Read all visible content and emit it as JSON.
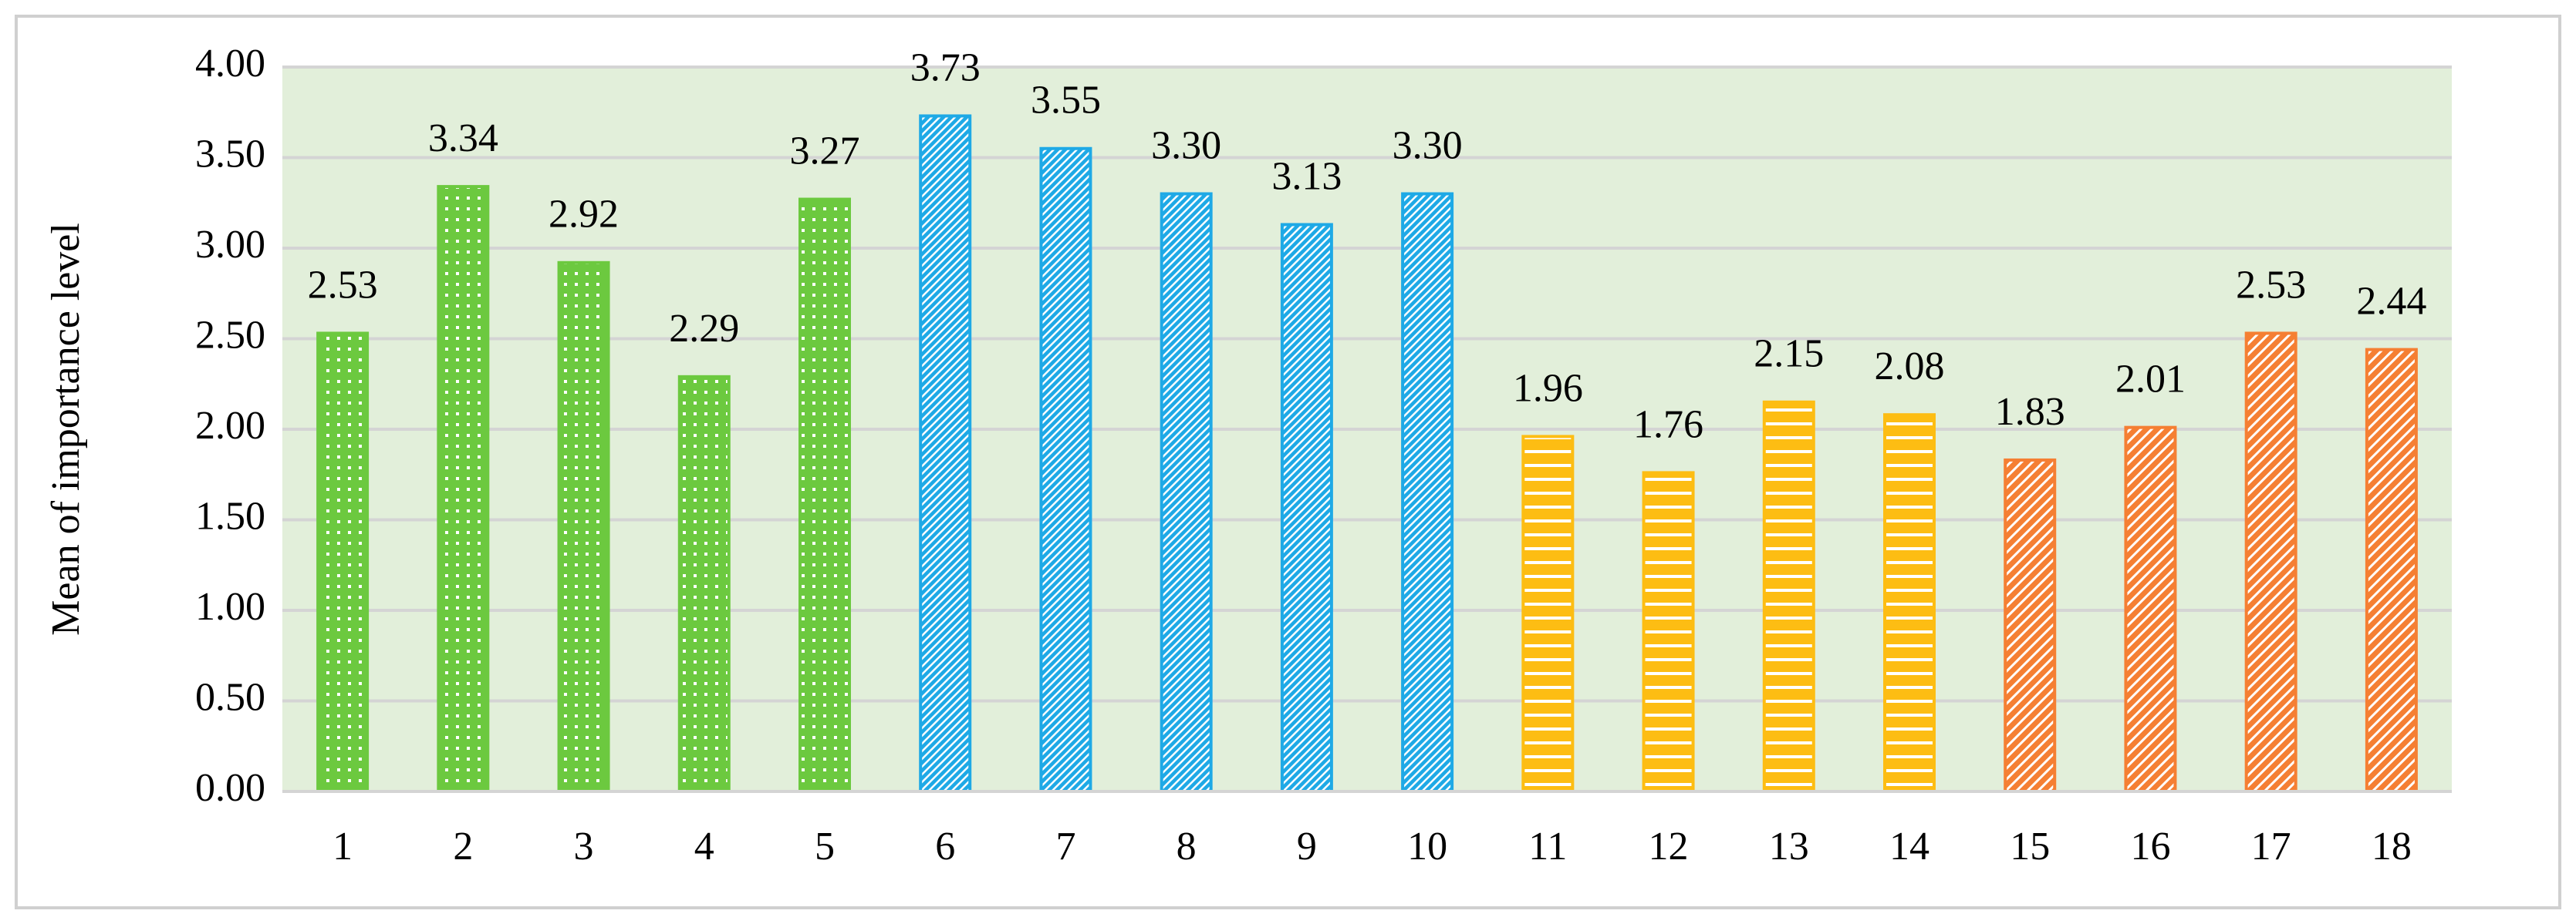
{
  "chart_data": {
    "type": "bar",
    "y_label": "Mean of importance level",
    "categories": [
      "1",
      "2",
      "3",
      "4",
      "5",
      "6",
      "7",
      "8",
      "9",
      "10",
      "11",
      "12",
      "13",
      "14",
      "15",
      "16",
      "17",
      "18"
    ],
    "values": [
      2.53,
      3.34,
      2.92,
      2.29,
      3.27,
      3.73,
      3.55,
      3.3,
      3.13,
      3.3,
      1.96,
      1.76,
      2.15,
      2.08,
      1.83,
      2.01,
      2.53,
      2.44
    ],
    "value_labels": [
      "2.53",
      "3.34",
      "2.92",
      "2.29",
      "3.27",
      "3.73",
      "3.55",
      "3.30",
      "3.13",
      "3.30",
      "1.96",
      "1.76",
      "2.15",
      "2.08",
      "1.83",
      "2.01",
      "2.53",
      "2.44"
    ],
    "colors": [
      "#6cc93f",
      "#6cc93f",
      "#6cc93f",
      "#6cc93f",
      "#6cc93f",
      "#1ea9e6",
      "#1ea9e6",
      "#1ea9e6",
      "#1ea9e6",
      "#1ea9e6",
      "#fdbd13",
      "#fdbd13",
      "#fdbd13",
      "#fdbd13",
      "#f57f33",
      "#f57f33",
      "#f57f33",
      "#f57f33"
    ],
    "patterns": [
      "dots",
      "dots",
      "dots",
      "dots",
      "dots",
      "diagonal-dense",
      "diagonal-dense",
      "diagonal-dense",
      "diagonal-dense",
      "diagonal-dense",
      "horizontal",
      "horizontal",
      "horizontal",
      "horizontal",
      "diagonal",
      "diagonal",
      "diagonal",
      "diagonal"
    ],
    "ylim": [
      0,
      4
    ],
    "yticks": [
      {
        "value": 0,
        "label": "0.00"
      },
      {
        "value": 0.5,
        "label": "0.50"
      },
      {
        "value": 1,
        "label": "1.00"
      },
      {
        "value": 1.5,
        "label": "1.50"
      },
      {
        "value": 2,
        "label": "2.00"
      },
      {
        "value": 2.5,
        "label": "2.50"
      },
      {
        "value": 3,
        "label": "3.00"
      },
      {
        "value": 3.5,
        "label": "3.50"
      },
      {
        "value": 4,
        "label": "4.00"
      }
    ],
    "grid": true,
    "plot_background": "#e2efda"
  }
}
